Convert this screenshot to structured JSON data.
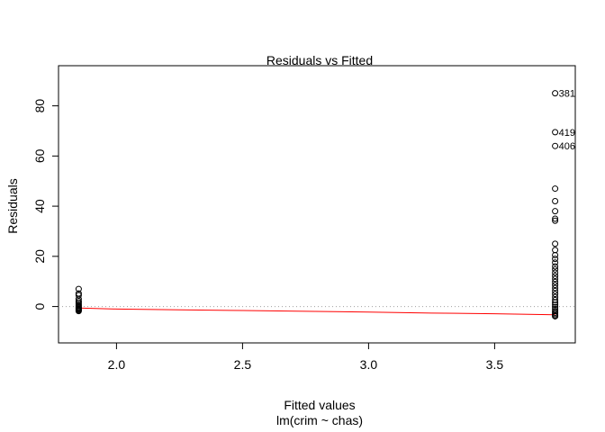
{
  "chart_data": {
    "type": "scatter",
    "title": "Residuals vs Fitted",
    "xlabel": "Fitted values",
    "subtitle": "lm(crim ~ chas)",
    "ylabel": "Residuals",
    "xlim": [
      1.77,
      3.82
    ],
    "ylim": [
      -14.5,
      96
    ],
    "xticks": [
      2.0,
      2.5,
      3.0,
      3.5
    ],
    "xtick_labels": [
      "2.0",
      "2.5",
      "3.0",
      "3.5"
    ],
    "yticks": [
      0,
      20,
      40,
      60,
      80
    ],
    "ytick_labels": [
      "0",
      "20",
      "40",
      "60",
      "80"
    ],
    "grid": false,
    "reference_line": {
      "y": 0,
      "style": "dotted",
      "color": "#a0a0a0"
    },
    "smoother": {
      "color": "#ff0000",
      "x": [
        1.85,
        2.0,
        2.25,
        2.5,
        2.75,
        3.0,
        3.25,
        3.5,
        3.74
      ],
      "y": [
        -0.6,
        -1.0,
        -1.3,
        -1.6,
        -1.9,
        -2.2,
        -2.6,
        -2.9,
        -3.3
      ]
    },
    "series": [
      {
        "x_value": 1.85,
        "y": [
          7.0,
          5.2,
          4.5,
          3.0,
          2.2,
          1.6,
          1.0,
          0.5,
          0.1,
          -0.3,
          -0.6,
          -0.9,
          -1.2,
          -1.5,
          -1.8
        ]
      },
      {
        "x_value": 3.74,
        "y": [
          85.0,
          69.5,
          64.0,
          47.0,
          42.0,
          38.0,
          35.0,
          34.2,
          25.0,
          22.5,
          20.5,
          19.0,
          17.5,
          16.0,
          14.8,
          13.5,
          12.2,
          11.0,
          9.8,
          8.6,
          7.4,
          6.2,
          5.0,
          3.8,
          2.6,
          1.6,
          0.7,
          -0.2,
          -1.0,
          -1.8,
          -2.5,
          -3.0,
          -3.5,
          -3.9
        ]
      }
    ],
    "annotations": [
      {
        "x": 3.74,
        "y": 85.0,
        "label": "381"
      },
      {
        "x": 3.74,
        "y": 69.5,
        "label": "419"
      },
      {
        "x": 3.74,
        "y": 64.0,
        "label": "406"
      }
    ]
  }
}
